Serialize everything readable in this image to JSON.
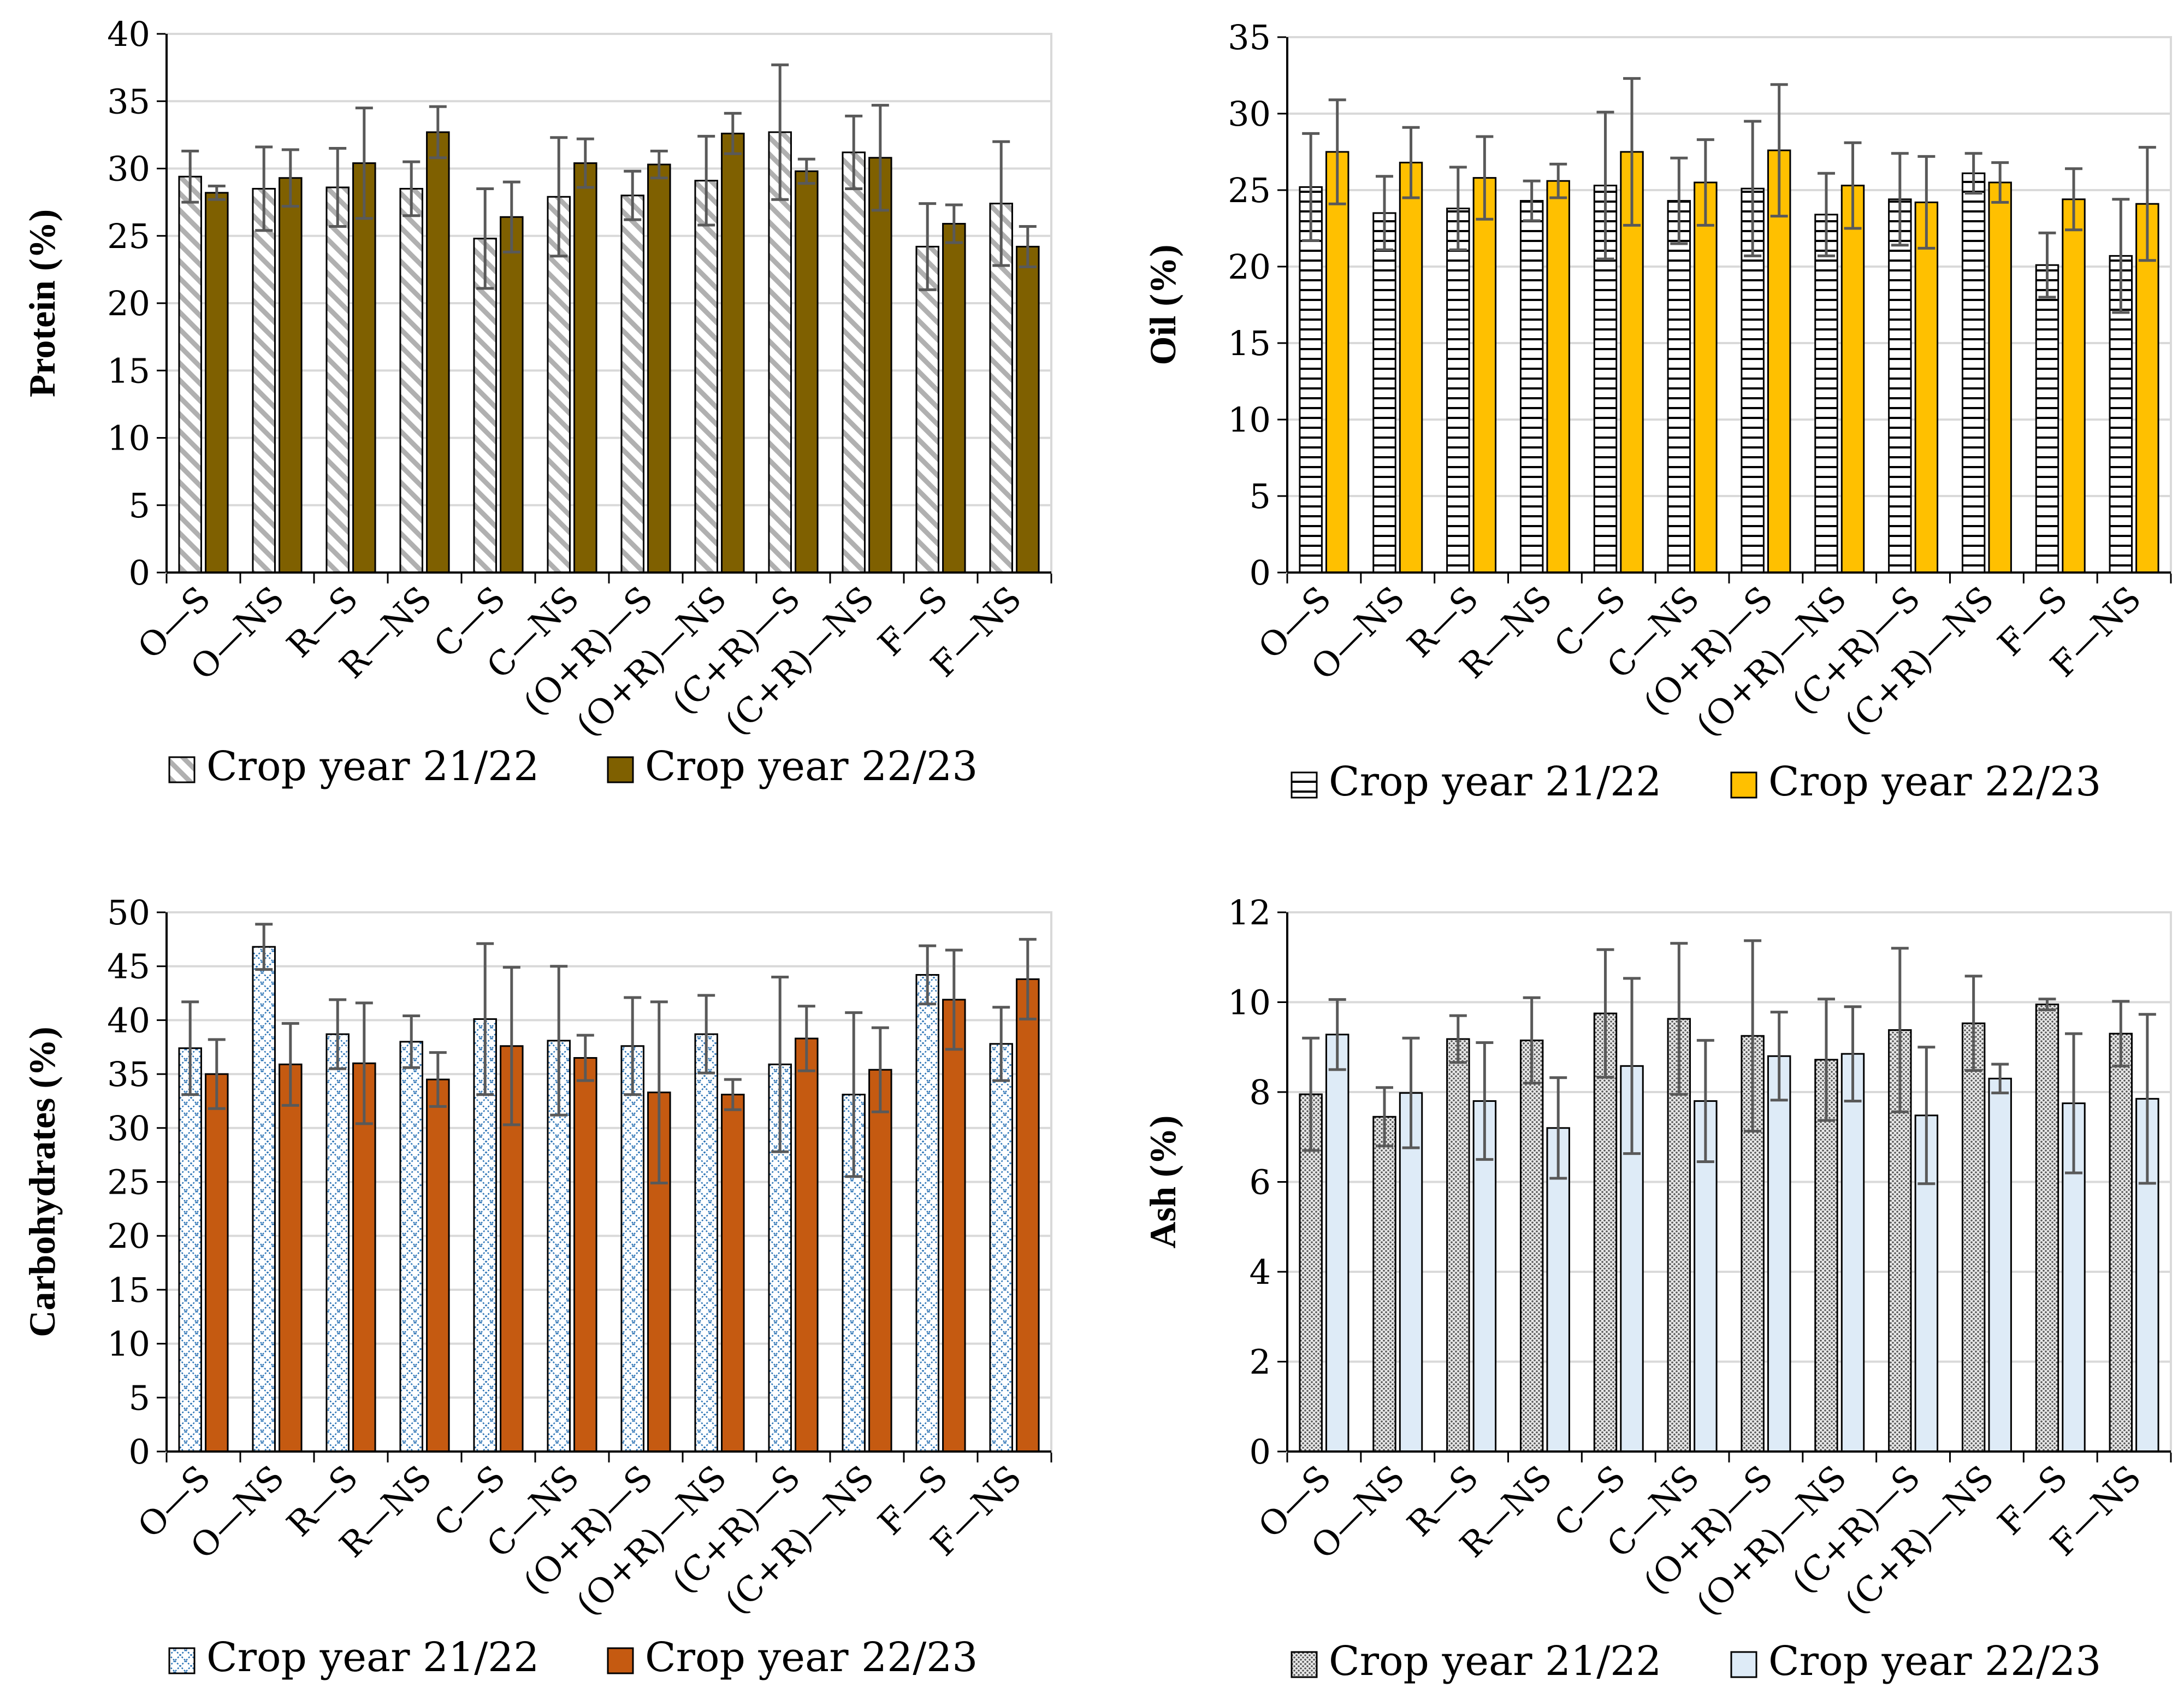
{
  "colors": {
    "grid": "#d9d9d9",
    "axis": "#000000",
    "error_bar": "#595959",
    "protein_2223": "#7f6000",
    "oil_2223": "#ffc000",
    "carb_2223": "#c55a11",
    "carb_pattern_21": "#2e75b6",
    "ash_2223": "#deebf7"
  },
  "chart_data": [
    {
      "id": "protein",
      "type": "bar",
      "ylabel": "Protein (%)",
      "ylim": [
        0,
        40
      ],
      "yticks": [
        "0",
        "5",
        "10",
        "15",
        "20",
        "25",
        "30",
        "35",
        "40"
      ],
      "grid": true,
      "categories": [
        "O—S",
        "O—NS",
        "R—S",
        "R—NS",
        "C—S",
        "C—NS",
        "(O+R)—S",
        "(O+R)—NS",
        "(C+R)—S",
        "(C+R)—NS",
        "F—S",
        "F—NS"
      ],
      "series": [
        {
          "name": "Crop year 21/22",
          "pattern": "diagonal",
          "values": [
            29.4,
            28.5,
            28.6,
            28.5,
            24.8,
            27.9,
            28.0,
            29.1,
            32.7,
            31.2,
            24.2,
            27.4
          ],
          "errors": [
            1.9,
            3.1,
            2.9,
            2.0,
            3.7,
            4.4,
            1.8,
            3.3,
            5.0,
            2.7,
            3.2,
            4.6
          ]
        },
        {
          "name": "Crop year 22/23",
          "pattern": "solid",
          "values": [
            28.2,
            29.3,
            30.4,
            32.7,
            26.4,
            30.4,
            30.3,
            32.6,
            29.8,
            30.8,
            25.9,
            24.2
          ],
          "errors": [
            0.5,
            2.1,
            4.1,
            1.9,
            2.6,
            1.8,
            1.0,
            1.5,
            0.9,
            3.9,
            1.4,
            1.5
          ]
        }
      ],
      "legend": "bottom"
    },
    {
      "id": "oil",
      "type": "bar",
      "ylabel": "Oil (%)",
      "ylim": [
        0,
        35
      ],
      "yticks": [
        "0",
        "5",
        "10",
        "15",
        "20",
        "25",
        "30",
        "35"
      ],
      "grid": true,
      "categories": [
        "O—S",
        "O—NS",
        "R—S",
        "R—NS",
        "C—S",
        "C—NS",
        "(O+R)—S",
        "(O+R)—NS",
        "(C+R)—S",
        "(C+R)—NS",
        "F—S",
        "F—NS"
      ],
      "series": [
        {
          "name": "Crop year 21/22",
          "pattern": "horizontal",
          "values": [
            25.2,
            23.5,
            23.8,
            24.3,
            25.3,
            24.3,
            25.1,
            23.4,
            24.4,
            26.1,
            20.1,
            20.7
          ],
          "errors": [
            3.5,
            2.4,
            2.7,
            1.3,
            4.8,
            2.8,
            4.4,
            2.7,
            3.0,
            1.3,
            2.1,
            3.7
          ]
        },
        {
          "name": "Crop year 22/23",
          "pattern": "solid",
          "values": [
            27.5,
            26.8,
            25.8,
            25.6,
            27.5,
            25.5,
            27.6,
            25.3,
            24.2,
            25.5,
            24.4,
            24.1
          ],
          "errors": [
            3.4,
            2.3,
            2.7,
            1.1,
            4.8,
            2.8,
            4.3,
            2.8,
            3.0,
            1.3,
            2.0,
            3.7
          ]
        }
      ],
      "legend": "bottom"
    },
    {
      "id": "carbohydrates",
      "type": "bar",
      "ylabel": "Carbohydrates (%)",
      "ylim": [
        0,
        50
      ],
      "yticks": [
        "0",
        "5",
        "10",
        "15",
        "20",
        "25",
        "30",
        "35",
        "40",
        "45",
        "50"
      ],
      "grid": true,
      "categories": [
        "O—S",
        "O—NS",
        "R—S",
        "R—NS",
        "C—S",
        "C—NS",
        "(O+R)—S",
        "(O+R)—NS",
        "(C+R)—S",
        "(C+R)—NS",
        "F—S",
        "F—NS"
      ],
      "series": [
        {
          "name": "Crop year 21/22",
          "pattern": "crosshatch",
          "values": [
            37.4,
            46.8,
            38.7,
            38.0,
            40.1,
            38.1,
            37.6,
            38.7,
            35.9,
            33.1,
            44.2,
            37.8
          ],
          "errors": [
            4.3,
            2.1,
            3.2,
            2.4,
            7.0,
            6.9,
            4.5,
            3.6,
            8.1,
            7.6,
            2.7,
            3.4
          ]
        },
        {
          "name": "Crop year 22/23",
          "pattern": "solid",
          "values": [
            35.0,
            35.9,
            36.0,
            34.5,
            37.6,
            36.5,
            33.3,
            33.1,
            38.3,
            35.4,
            41.9,
            43.8
          ],
          "errors": [
            3.2,
            3.8,
            5.6,
            2.5,
            7.3,
            2.1,
            8.4,
            1.4,
            3.0,
            3.9,
            4.6,
            3.7
          ]
        }
      ],
      "legend": "bottom"
    },
    {
      "id": "ash",
      "type": "bar",
      "ylabel": "Ash (%)",
      "ylim": [
        0,
        12
      ],
      "yticks": [
        "0",
        "2",
        "4",
        "6",
        "8",
        "10",
        "12"
      ],
      "grid": true,
      "categories": [
        "O—S",
        "O—NS",
        "R—S",
        "R—NS",
        "C—S",
        "C—NS",
        "(O+R)—S",
        "(O+R)—NS",
        "(C+R)—S",
        "(C+R)—NS",
        "F—S",
        "F—NS"
      ],
      "series": [
        {
          "name": "Crop year 21/22",
          "pattern": "dotted",
          "values": [
            7.95,
            7.45,
            9.18,
            9.15,
            9.75,
            9.63,
            9.25,
            8.72,
            9.38,
            9.53,
            9.95,
            9.3
          ],
          "errors": [
            1.25,
            0.65,
            0.52,
            0.95,
            1.42,
            1.68,
            2.12,
            1.35,
            1.82,
            1.05,
            0.12,
            0.72
          ]
        },
        {
          "name": "Crop year 22/23",
          "pattern": "solid",
          "values": [
            9.28,
            7.98,
            7.8,
            7.2,
            8.58,
            7.8,
            8.8,
            8.85,
            7.48,
            8.3,
            7.75,
            7.85
          ],
          "errors": [
            0.78,
            1.22,
            1.3,
            1.12,
            1.95,
            1.35,
            0.98,
            1.05,
            1.52,
            0.32,
            1.55,
            1.88
          ]
        }
      ],
      "legend": "bottom"
    }
  ]
}
